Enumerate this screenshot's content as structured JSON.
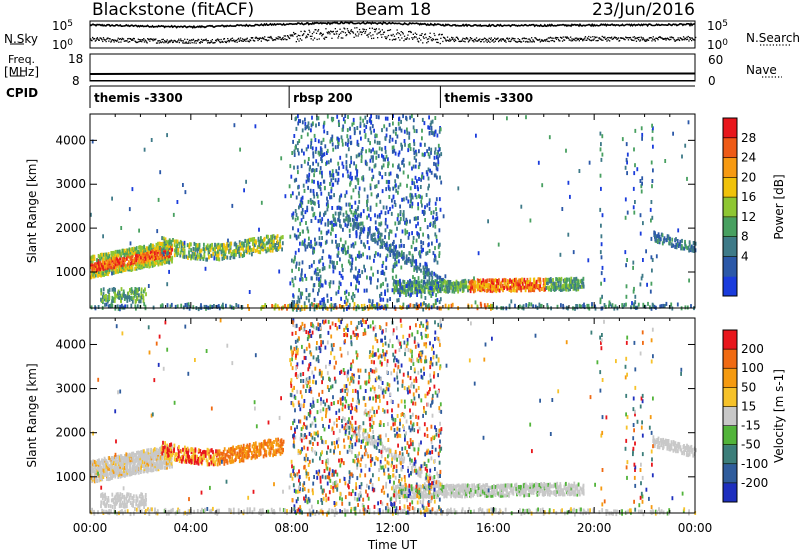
{
  "header": {
    "station": "Blackstone (fitACF)",
    "beam": "Beam 18",
    "date": "23/Jun/2016"
  },
  "side_labels": {
    "nsky": "N.Sky",
    "freq_line1": "Freq.",
    "freq_line2": "[MHz]",
    "cpid": "CPID",
    "nsearch": "N.Search",
    "nave": "Nave"
  },
  "chart_data": [
    {
      "type": "line",
      "panel": "noise",
      "yticks_left": [
        "10^5",
        "10^0"
      ],
      "yticks_right": [
        "10^5",
        "10^0"
      ],
      "series": [
        {
          "name": "N.Sky",
          "x": [
            0,
            2,
            4,
            6,
            8,
            9,
            10,
            11,
            12,
            13,
            14,
            16,
            18,
            20,
            22,
            24
          ],
          "y": [
            4.6,
            4.4,
            4.2,
            4.5,
            4.8,
            4.9,
            5.0,
            5.0,
            4.9,
            4.8,
            4.6,
            4.5,
            4.5,
            4.6,
            4.6,
            4.7
          ]
        },
        {
          "name": "N.Search",
          "x": [
            0,
            2,
            4,
            6,
            8,
            9,
            10,
            11,
            12,
            13,
            14,
            16,
            18,
            20,
            22,
            24
          ],
          "y": [
            1.8,
            1.6,
            1.5,
            1.7,
            2.3,
            2.8,
            3.2,
            3.2,
            2.8,
            2.2,
            1.9,
            1.7,
            1.8,
            2.0,
            1.9,
            2.0
          ]
        }
      ]
    },
    {
      "type": "line",
      "panel": "frequency",
      "yticks_left": [
        "18",
        "8"
      ],
      "yticks_right": [
        "60",
        "0"
      ],
      "series": [
        {
          "name": "Freq.",
          "x": [
            0,
            8,
            24
          ],
          "y": [
            10.6,
            10.8,
            10.8
          ]
        },
        {
          "name": "Nave",
          "x": [
            0,
            24
          ],
          "y": [
            0,
            0
          ]
        }
      ]
    },
    {
      "type": "table",
      "panel": "cpid",
      "segments": [
        {
          "label": "themis -3300",
          "start": 0,
          "end": 7.9
        },
        {
          "label": "rbsp 200",
          "start": 7.9,
          "end": 13.9
        },
        {
          "label": "themis -3300",
          "start": 13.9,
          "end": 24
        }
      ]
    },
    {
      "type": "heatmap",
      "panel": "power",
      "ylabel": "Slant Range [km]",
      "ylim": [
        180,
        4600
      ],
      "yticks": [
        1000,
        2000,
        3000,
        4000
      ],
      "colorbar_label": "Power [dB]",
      "colorbar_ticks": [
        "28",
        "24",
        "20",
        "16",
        "12",
        "8",
        "4"
      ],
      "colors": [
        "#1a3cdc",
        "#2b58a8",
        "#3e7a88",
        "#48a060",
        "#8ec632",
        "#f0c20a",
        "#f79a12",
        "#ee5a16",
        "#e8161c"
      ]
    },
    {
      "type": "heatmap",
      "panel": "velocity",
      "xlabel": "Time UT",
      "ylabel": "Slant Range [km]",
      "xlim": [
        0,
        24
      ],
      "xticks": [
        "00:00",
        "04:00",
        "08:00",
        "12:00",
        "16:00",
        "20:00",
        "00:00"
      ],
      "ylim": [
        180,
        4600
      ],
      "yticks": [
        1000,
        2000,
        3000,
        4000
      ],
      "colorbar_label": "Velocity [m s-1]",
      "colorbar_ticks": [
        "200",
        "100",
        "50",
        "15",
        "-15",
        "-50",
        "-100",
        "-200"
      ],
      "colors": [
        "#1e2fbe",
        "#2f5c9c",
        "#3c7e7a",
        "#52b43a",
        "#c8c8c8",
        "#f6c22a",
        "#f59a10",
        "#f06a12",
        "#e8161c"
      ]
    }
  ]
}
